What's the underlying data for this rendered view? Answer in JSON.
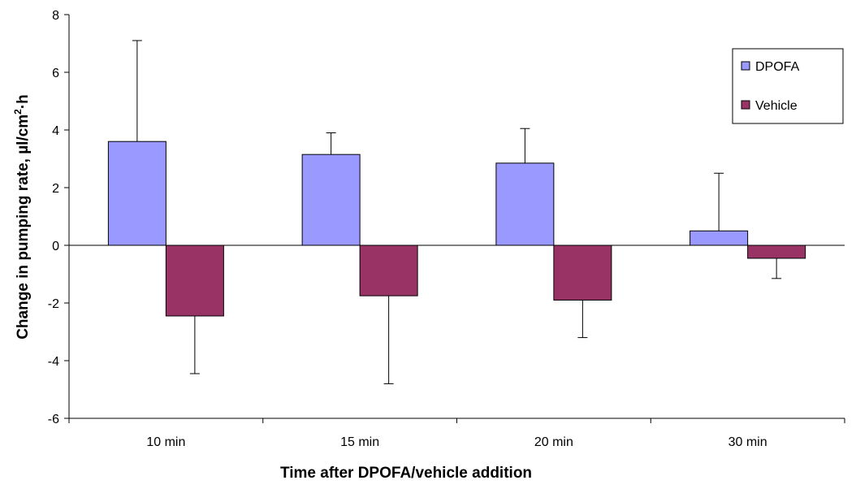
{
  "chart_data": {
    "type": "bar",
    "categories": [
      "10 min",
      "15 min",
      "20 min",
      "30 min"
    ],
    "series": [
      {
        "name": "DPOFA",
        "color": "#9999ff",
        "values": [
          3.6,
          3.15,
          2.85,
          0.5
        ],
        "error_plus": [
          3.5,
          0.75,
          1.2,
          2.0
        ]
      },
      {
        "name": "Vehicle",
        "color": "#993366",
        "values": [
          -2.45,
          -1.75,
          -1.9,
          -0.45
        ],
        "error_minus": [
          2.0,
          3.05,
          1.3,
          0.7
        ]
      }
    ],
    "xlabel": "Time after DPOFA/vehicle addition",
    "ylabel": {
      "prefix": "Change  in pumping rate, µl/cm",
      "superscript": "2",
      "suffix": "·h"
    },
    "ylim": [
      -6,
      8
    ],
    "yticks": [
      "8",
      "6",
      "4",
      "2",
      "0",
      "-2",
      "-4",
      "-6"
    ],
    "legend_position": "top-right",
    "grid": false
  }
}
